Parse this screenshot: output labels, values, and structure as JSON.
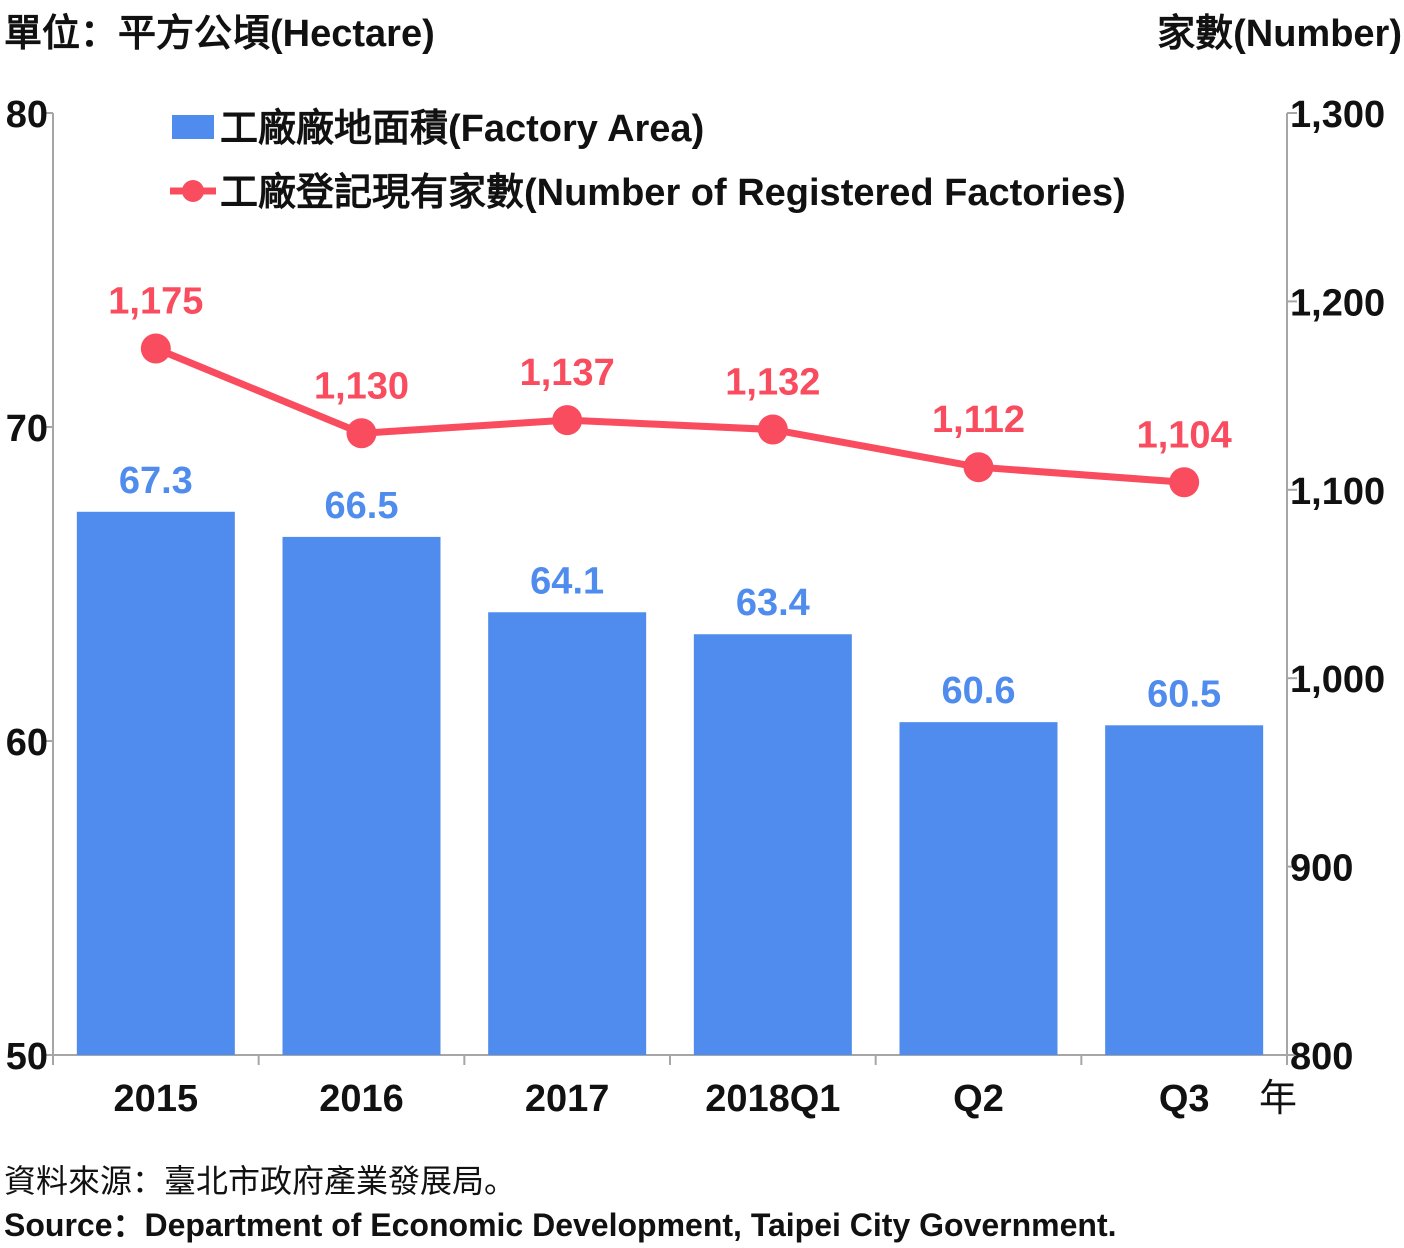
{
  "units": {
    "left": "單位：平方公頃(Hectare)",
    "right": "家數(Number)"
  },
  "year_suffix": "年",
  "source": {
    "zh": "資料來源：臺北市政府產業發展局。",
    "en": "Source：Department of Economic Development, Taipei City Government."
  },
  "colors": {
    "bar": "#4f8ced",
    "line": "#f94c5f",
    "axis": "#a6a6a6"
  },
  "chart_data": {
    "type": "bar",
    "categories": [
      "2015",
      "2016",
      "2017",
      "2018Q1",
      "Q2",
      "Q3"
    ],
    "series": [
      {
        "name": "工廠廠地面積(Factory Area)",
        "type": "bar",
        "axis": "left",
        "values": [
          67.3,
          66.5,
          64.1,
          63.4,
          60.6,
          60.5
        ],
        "labels": [
          "67.3",
          "66.5",
          "64.1",
          "63.4",
          "60.6",
          "60.5"
        ]
      },
      {
        "name": "工廠登記現有家數(Number of Registered Factories)",
        "type": "line",
        "axis": "right",
        "values": [
          1175,
          1130,
          1137,
          1132,
          1112,
          1104
        ],
        "labels": [
          "1,175",
          "1,130",
          "1,137",
          "1,132",
          "1,112",
          "1,104"
        ]
      }
    ],
    "y_left": {
      "range": [
        50,
        80
      ],
      "ticks": [
        50,
        60,
        70,
        80
      ],
      "tick_labels": [
        "50",
        "60",
        "70",
        "80"
      ]
    },
    "y_right": {
      "range": [
        800,
        1300
      ],
      "ticks": [
        800,
        900,
        1000,
        1100,
        1200,
        1300
      ],
      "tick_labels": [
        "800",
        "900",
        "1,000",
        "1,100",
        "1,200",
        "1,300"
      ]
    },
    "grid": false,
    "legend_position": "top-left"
  }
}
